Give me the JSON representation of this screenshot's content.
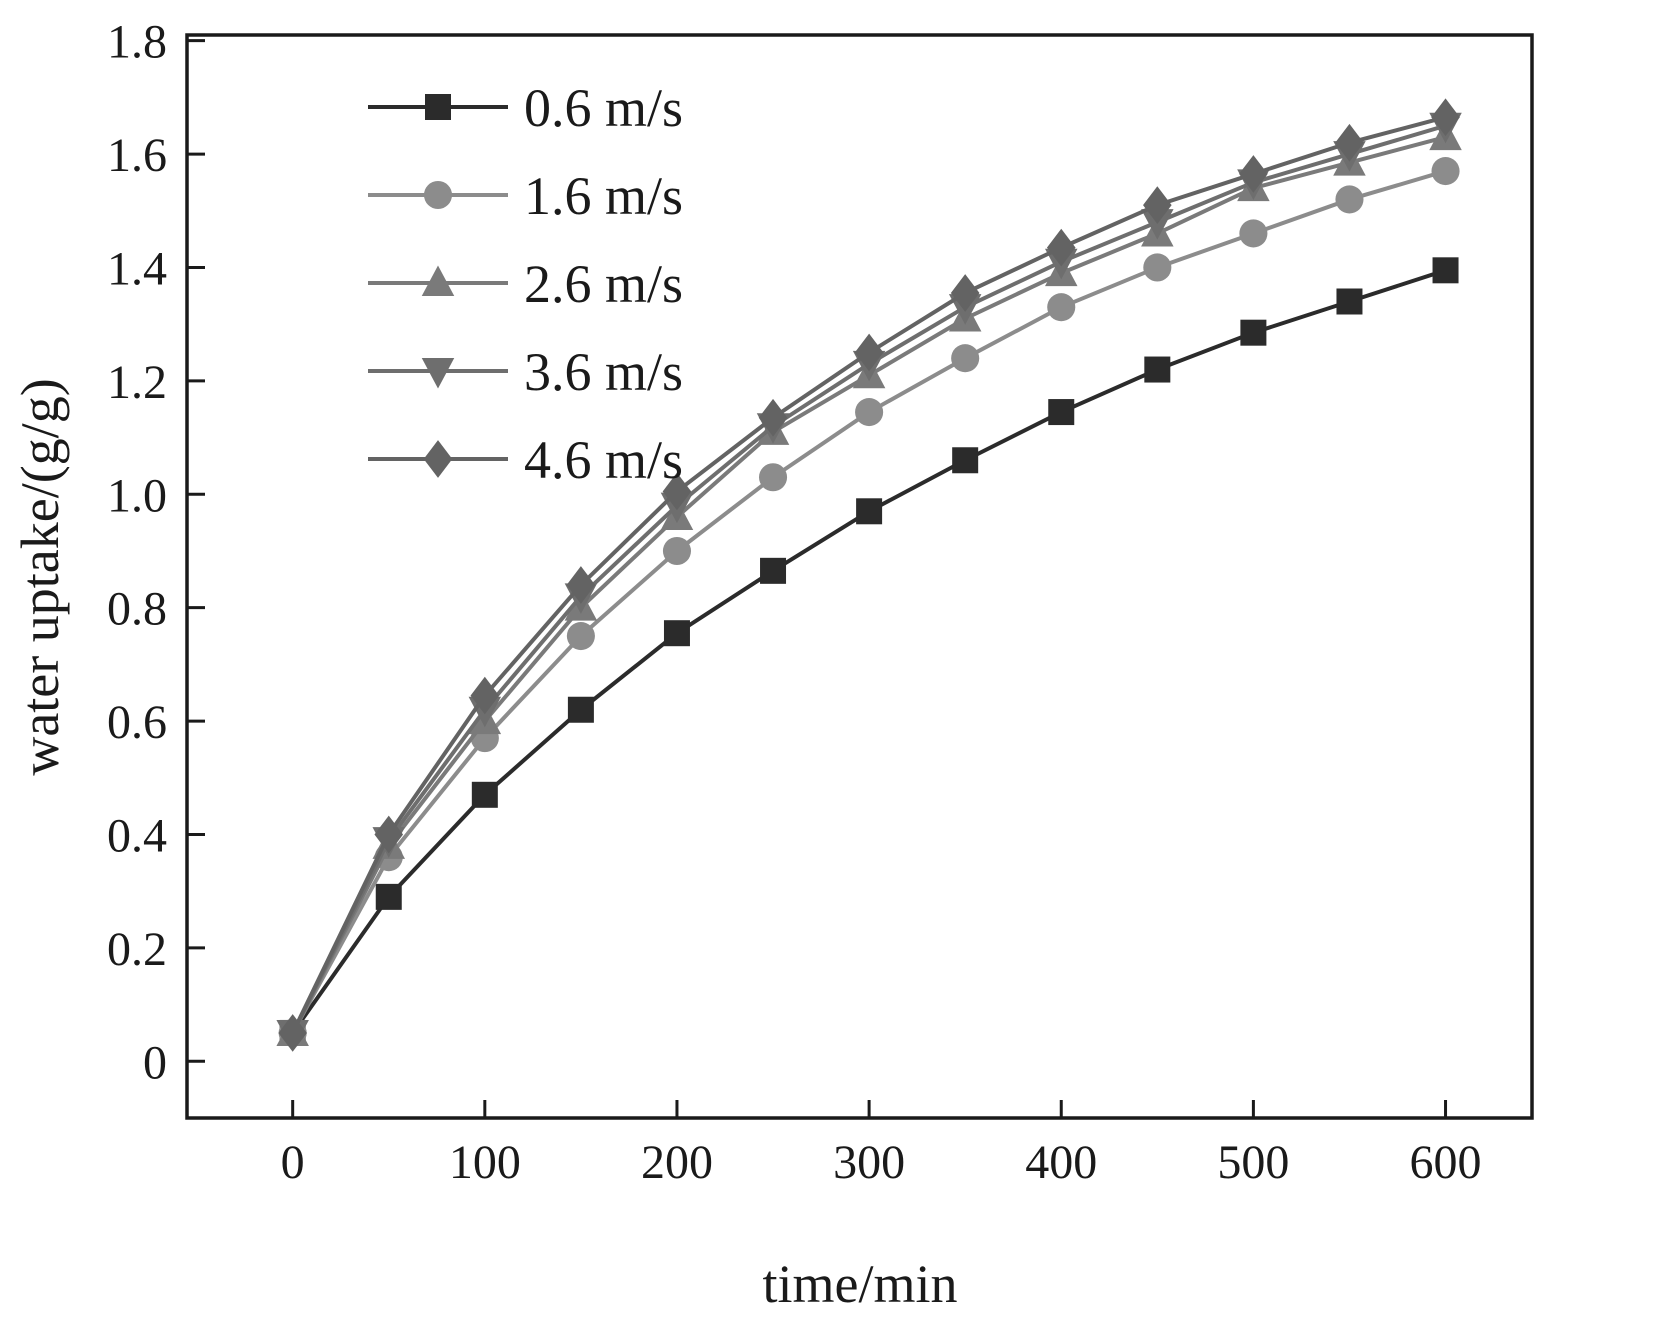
{
  "chart_data": {
    "type": "line",
    "title": "",
    "xlabel": "time/min",
    "ylabel": "water uptake/(g/g)",
    "grid": false,
    "legend_position": "upper-left-inside",
    "xlim": [
      -55,
      645
    ],
    "ylim": [
      -0.1,
      1.81
    ],
    "xticks": [
      0,
      100,
      200,
      300,
      400,
      500,
      600
    ],
    "xtick_labels": [
      "0",
      "100",
      "200",
      "300",
      "400",
      "500",
      "600"
    ],
    "yticks": [
      0,
      0.2,
      0.4,
      0.6,
      0.8,
      1.0,
      1.2,
      1.4,
      1.6,
      1.8
    ],
    "ytick_labels": [
      "0",
      "0.2",
      "0.4",
      "0.6",
      "0.8",
      "1.0",
      "1.2",
      "1.4",
      "1.6",
      "1.8"
    ],
    "x": [
      0,
      50,
      100,
      150,
      200,
      250,
      300,
      350,
      400,
      450,
      500,
      550,
      600
    ],
    "series": [
      {
        "name": "0.6 m/s",
        "marker": "square",
        "color": "#2b2b2b",
        "values": [
          0.05,
          0.29,
          0.47,
          0.62,
          0.755,
          0.865,
          0.97,
          1.06,
          1.145,
          1.22,
          1.285,
          1.34,
          1.395
        ]
      },
      {
        "name": "1.6 m/s",
        "marker": "circle",
        "color": "#8c8c8c",
        "values": [
          0.05,
          0.36,
          0.57,
          0.75,
          0.9,
          1.03,
          1.145,
          1.24,
          1.33,
          1.4,
          1.46,
          1.52,
          1.57
        ]
      },
      {
        "name": "2.6 m/s",
        "marker": "triangle-up",
        "color": "#7a7a7a",
        "values": [
          0.05,
          0.38,
          0.6,
          0.8,
          0.96,
          1.11,
          1.21,
          1.31,
          1.39,
          1.46,
          1.54,
          1.585,
          1.63
        ]
      },
      {
        "name": "3.6 m/s",
        "marker": "triangle-down",
        "color": "#6e6e6e",
        "values": [
          0.05,
          0.39,
          0.62,
          0.82,
          0.98,
          1.12,
          1.23,
          1.33,
          1.41,
          1.48,
          1.55,
          1.6,
          1.65
        ]
      },
      {
        "name": "4.6 m/s",
        "marker": "diamond",
        "color": "#636363",
        "values": [
          0.05,
          0.4,
          0.645,
          0.84,
          1.005,
          1.135,
          1.25,
          1.355,
          1.435,
          1.51,
          1.565,
          1.62,
          1.665
        ]
      }
    ]
  }
}
